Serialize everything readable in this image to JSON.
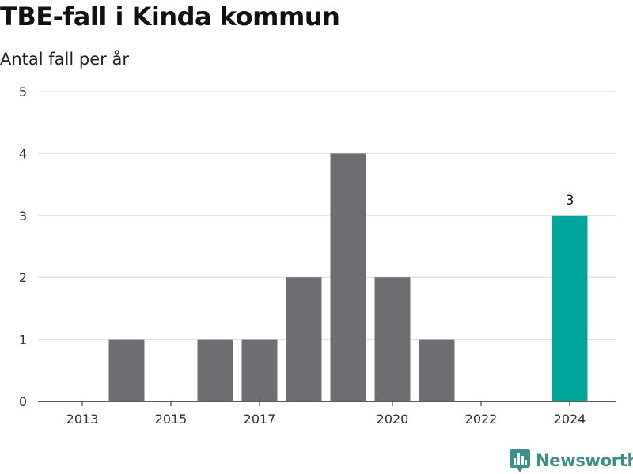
{
  "title": "TBE-fall i Kinda kommun",
  "subtitle": "Antal fall per år",
  "brand": {
    "name": "Newsworthy",
    "icon": "newsworthy-logo-icon",
    "color": "#3f8e8a"
  },
  "colors": {
    "bar": "#6e6d72",
    "highlight": "#00a599",
    "grid": "#dcdcdc",
    "axis": "#222222",
    "text": "#333333"
  },
  "chart_data": {
    "type": "bar",
    "title": "TBE-fall i Kinda kommun",
    "subtitle": "Antal fall per år",
    "xlabel": "",
    "ylabel": "",
    "categories": [
      "2013",
      "2014",
      "2015",
      "2016",
      "2017",
      "2018",
      "2019",
      "2020",
      "2021",
      "2022",
      "2023",
      "2024"
    ],
    "values": [
      0,
      1,
      0,
      1,
      1,
      2,
      4,
      2,
      1,
      0,
      0,
      3
    ],
    "x_tick_labels": [
      "2013",
      "2015",
      "2017",
      "2020",
      "2022",
      "2024"
    ],
    "y_ticks": [
      0,
      1,
      2,
      3,
      4,
      5
    ],
    "ylim": [
      0,
      5
    ],
    "grid": true,
    "legend": "none",
    "highlight_category": "2024",
    "data_labels": [
      {
        "category": "2024",
        "text": "3"
      }
    ]
  }
}
